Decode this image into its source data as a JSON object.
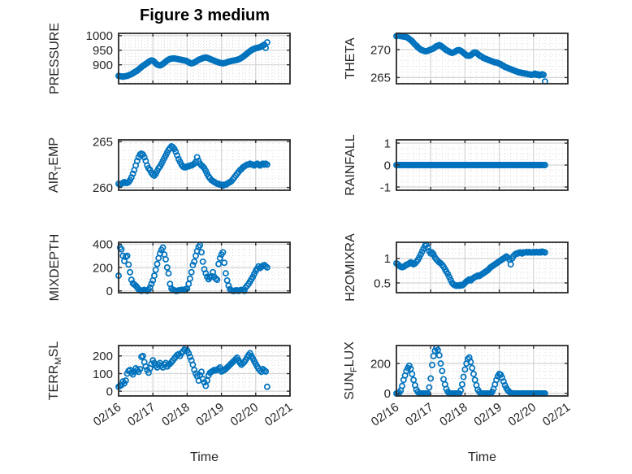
{
  "figure": {
    "title": "Figure 3 medium",
    "xlabel": "Time"
  },
  "axis": {
    "x_tick_labels": [
      "02/16",
      "02/17",
      "02/18",
      "02/19",
      "02/20",
      "02/21"
    ]
  },
  "style": {
    "marker_color": "#0072BD",
    "axis_color": "#2b2b2b",
    "grid_color": "#d4d4d4",
    "minor_grid_color": "#dcdcdc",
    "text_color": "#262626",
    "background": "#ffffff"
  },
  "chart_data": [
    {
      "type": "scatter",
      "name": "pressure",
      "row": 0,
      "col": 0,
      "ylabel_parts": [
        {
          "text": "PRESSURE",
          "sub": false
        }
      ],
      "ylim": [
        835,
        1008
      ],
      "yticks": [
        900,
        950,
        1000
      ],
      "ytick_labels": [
        "900",
        "950",
        "1000"
      ],
      "y_minor_step": 10,
      "x": {
        "start_day": 0,
        "step_day": 0.0416667,
        "unit": "days after 02/16"
      },
      "values": [
        862,
        861,
        860,
        859,
        860,
        861,
        862,
        864,
        866,
        868,
        871,
        874,
        877,
        880,
        884,
        888,
        892,
        896,
        899,
        903,
        906,
        910,
        913,
        915,
        914,
        910,
        905,
        901,
        899,
        898,
        900,
        903,
        907,
        911,
        915,
        918,
        920,
        921,
        922,
        922,
        921,
        920,
        919,
        918,
        917,
        916,
        915,
        914,
        912,
        909,
        906,
        905,
        906,
        908,
        911,
        914,
        917,
        919,
        921,
        923,
        924,
        925,
        924,
        922,
        920,
        918,
        916,
        914,
        912,
        910,
        908,
        907,
        906,
        905,
        906,
        907,
        909,
        911,
        912,
        913,
        914,
        915,
        916,
        917,
        919,
        921,
        924,
        927,
        931,
        935,
        939,
        943,
        947,
        950,
        953,
        955,
        957,
        958,
        959,
        961,
        963,
        966,
        969,
        958,
        977
      ]
    },
    {
      "type": "scatter",
      "name": "theta",
      "row": 0,
      "col": 1,
      "ylabel_parts": [
        {
          "text": "THETA",
          "sub": false
        }
      ],
      "ylim": [
        263.9,
        272.9
      ],
      "yticks": [
        265,
        270
      ],
      "ytick_labels": [
        "265",
        "270"
      ],
      "y_minor_step": 1,
      "x": {
        "start_day": 0,
        "step_day": 0.0416667,
        "unit": "days after 02/16"
      },
      "values": [
        272.4,
        272.5,
        272.5,
        272.4,
        272.4,
        272.3,
        272.3,
        272.2,
        272.1,
        271.9,
        271.7,
        271.5,
        271.2,
        270.9,
        270.7,
        270.4,
        270.2,
        270.0,
        269.9,
        269.8,
        269.7,
        269.7,
        269.8,
        269.9,
        270.0,
        270.1,
        270.2,
        270.4,
        270.6,
        270.7,
        270.8,
        270.7,
        270.5,
        270.3,
        270.1,
        269.9,
        269.8,
        269.6,
        269.5,
        269.4,
        269.5,
        269.6,
        269.8,
        269.9,
        269.9,
        269.8,
        269.6,
        269.4,
        269.2,
        269.0,
        268.9,
        268.9,
        269.0,
        269.2,
        269.4,
        269.5,
        269.4,
        269.2,
        269.0,
        268.8,
        268.7,
        268.5,
        268.4,
        268.3,
        268.2,
        268.1,
        268.0,
        267.9,
        267.8,
        267.7,
        267.7,
        267.6,
        267.5,
        267.4,
        267.2,
        267.1,
        266.9,
        266.8,
        266.7,
        266.6,
        266.5,
        266.4,
        266.3,
        266.2,
        266.1,
        266.0,
        265.9,
        265.9,
        265.8,
        265.8,
        265.7,
        265.7,
        265.6,
        265.6,
        265.5,
        265.5,
        265.6,
        265.7,
        265.5,
        265.6,
        265.4,
        265.5,
        265.6,
        265.5,
        264.3
      ]
    },
    {
      "type": "scatter",
      "name": "air-temp",
      "row": 1,
      "col": 0,
      "ylabel_parts": [
        {
          "text": "AIR",
          "sub": false
        },
        {
          "text": "T",
          "sub": true
        },
        {
          "text": "EMP",
          "sub": false
        }
      ],
      "ylim": [
        259.7,
        265.2
      ],
      "yticks": [
        260,
        265
      ],
      "ytick_labels": [
        "260",
        "265"
      ],
      "y_minor_step": 1,
      "x": {
        "start_day": 0,
        "step_day": 0.0416667,
        "unit": "days after 02/16"
      },
      "values": [
        260.4,
        260.3,
        260.4,
        260.5,
        260.6,
        260.5,
        260.5,
        260.6,
        260.8,
        261.1,
        261.5,
        261.9,
        262.4,
        262.9,
        263.3,
        263.6,
        263.7,
        263.6,
        263.3,
        262.9,
        262.4,
        262.1,
        261.9,
        261.6,
        261.4,
        261.3,
        261.5,
        261.8,
        262.1,
        262.3,
        262.6,
        262.9,
        263.2,
        263.5,
        263.8,
        264.1,
        264.3,
        264.5,
        264.4,
        264.2,
        263.9,
        263.5,
        263.1,
        262.8,
        262.5,
        262.3,
        262.2,
        262.2,
        262.3,
        262.3,
        262.4,
        262.4,
        262.5,
        262.6,
        262.8,
        263.3,
        262.9,
        262.6,
        262.4,
        262.3,
        262.1,
        261.8,
        261.5,
        261.2,
        261.0,
        260.8,
        260.7,
        260.6,
        260.5,
        260.4,
        260.4,
        260.3,
        260.3,
        260.2,
        260.3,
        260.3,
        260.4,
        260.5,
        260.6,
        260.7,
        260.9,
        261.1,
        261.3,
        261.5,
        261.7,
        261.9,
        262.0,
        262.2,
        262.3,
        262.4,
        262.5,
        262.5,
        262.6,
        262.5,
        262.5,
        262.4,
        262.5,
        262.6,
        262.5,
        262.4,
        262.5,
        262.6,
        262.5,
        262.6,
        262.5
      ]
    },
    {
      "type": "scatter",
      "name": "rainfall",
      "row": 1,
      "col": 1,
      "ylabel_parts": [
        {
          "text": "RAINFALL",
          "sub": false
        }
      ],
      "ylim": [
        -1.15,
        1.15
      ],
      "yticks": [
        -1,
        0,
        1
      ],
      "ytick_labels": [
        "-1",
        "0",
        "1"
      ],
      "y_minor_step": 0.25,
      "x": {
        "start_day": 0,
        "step_day": 0.0416667,
        "unit": "days after 02/16"
      },
      "values": [
        0,
        0,
        0,
        0,
        0,
        0,
        0,
        0,
        0,
        0,
        0,
        0,
        0,
        0,
        0,
        0,
        0,
        0,
        0,
        0,
        0,
        0,
        0,
        0,
        0,
        0,
        0,
        0,
        0,
        0,
        0,
        0,
        0,
        0,
        0,
        0,
        0,
        0,
        0,
        0,
        0,
        0,
        0,
        0,
        0,
        0,
        0,
        0,
        0,
        0,
        0,
        0,
        0,
        0,
        0,
        0,
        0,
        0,
        0,
        0,
        0,
        0,
        0,
        0,
        0,
        0,
        0,
        0,
        0,
        0,
        0,
        0,
        0,
        0,
        0,
        0,
        0,
        0,
        0,
        0,
        0,
        0,
        0,
        0,
        0,
        0,
        0,
        0,
        0,
        0,
        0,
        0,
        0,
        0,
        0,
        0,
        0,
        0,
        0,
        0,
        0,
        0,
        0,
        0,
        0
      ]
    },
    {
      "type": "scatter",
      "name": "mixdepth",
      "row": 2,
      "col": 0,
      "ylabel_parts": [
        {
          "text": "MIXDEPTH",
          "sub": false
        }
      ],
      "ylim": [
        -15,
        415
      ],
      "yticks": [
        0,
        200,
        400
      ],
      "ytick_labels": [
        "0",
        "200",
        "400"
      ],
      "y_minor_step": 50,
      "x": {
        "start_day": 0,
        "step_day": 0.0416667,
        "unit": "days after 02/16"
      },
      "values": [
        130,
        370,
        355,
        300,
        255,
        290,
        300,
        225,
        160,
        95,
        65,
        55,
        45,
        30,
        15,
        5,
        0,
        5,
        10,
        5,
        0,
        10,
        30,
        60,
        90,
        130,
        180,
        230,
        280,
        320,
        350,
        370,
        310,
        270,
        200,
        150,
        60,
        20,
        10,
        5,
        0,
        0,
        5,
        5,
        10,
        10,
        5,
        15,
        20,
        60,
        105,
        160,
        220,
        250,
        300,
        340,
        375,
        390,
        330,
        250,
        185,
        150,
        120,
        100,
        115,
        125,
        160,
        120,
        105,
        95,
        230,
        280,
        310,
        330,
        240,
        150,
        90,
        45,
        15,
        5,
        0,
        0,
        5,
        5,
        0,
        5,
        10,
        5,
        0,
        30,
        45,
        60,
        80,
        100,
        120,
        145,
        170,
        190,
        210,
        195,
        205,
        215,
        220,
        210,
        200
      ]
    },
    {
      "type": "scatter",
      "name": "h2omixra",
      "row": 2,
      "col": 1,
      "ylabel_parts": [
        {
          "text": "H2OMIXRA",
          "sub": false
        }
      ],
      "ylim": [
        0.3,
        1.33
      ],
      "yticks": [
        0.5,
        1
      ],
      "ytick_labels": [
        "0.5",
        "1"
      ],
      "y_minor_step": 0.1,
      "x": {
        "start_day": 0,
        "step_day": 0.0416667,
        "unit": "days after 02/16"
      },
      "values": [
        0.9,
        0.88,
        0.85,
        0.83,
        0.82,
        0.83,
        0.85,
        0.87,
        0.88,
        0.9,
        0.92,
        0.9,
        0.88,
        0.9,
        0.93,
        0.97,
        1.02,
        1.08,
        1.14,
        1.2,
        1.26,
        1.28,
        1.22,
        1.15,
        1.1,
        1.12,
        1.08,
        1.02,
        0.98,
        0.95,
        0.92,
        0.9,
        0.87,
        0.83,
        0.78,
        0.73,
        0.68,
        0.62,
        0.56,
        0.5,
        0.47,
        0.45,
        0.44,
        0.45,
        0.44,
        0.46,
        0.45,
        0.47,
        0.5,
        0.53,
        0.55,
        0.57,
        0.55,
        0.58,
        0.6,
        0.62,
        0.63,
        0.65,
        0.64,
        0.66,
        0.68,
        0.7,
        0.72,
        0.74,
        0.76,
        0.79,
        0.82,
        0.84,
        0.86,
        0.88,
        0.9,
        0.92,
        0.94,
        0.96,
        0.98,
        1.0,
        1.02,
        1.04,
        1.02,
        0.98,
        0.88,
        1.0,
        1.05,
        1.08,
        1.1,
        1.1,
        1.12,
        1.12,
        1.1,
        1.12,
        1.12,
        1.13,
        1.12,
        1.13,
        1.12,
        1.12,
        1.13,
        1.12,
        1.13,
        1.12,
        1.13,
        1.12,
        1.14,
        1.13,
        1.12
      ]
    },
    {
      "type": "scatter",
      "name": "terr-msl",
      "row": 3,
      "col": 0,
      "ylabel_parts": [
        {
          "text": "TERR",
          "sub": false
        },
        {
          "text": "M",
          "sub": true
        },
        {
          "text": "SL",
          "sub": false
        }
      ],
      "ylim": [
        -27,
        259
      ],
      "yticks": [
        0,
        100,
        200
      ],
      "ytick_labels": [
        "0",
        "100",
        "200"
      ],
      "y_minor_step": 25,
      "x": {
        "start_day": 0,
        "step_day": 0.0416667,
        "unit": "days after 02/16"
      },
      "values": [
        25,
        30,
        35,
        55,
        45,
        60,
        100,
        115,
        120,
        105,
        95,
        110,
        130,
        120,
        110,
        125,
        195,
        200,
        165,
        140,
        120,
        105,
        130,
        155,
        175,
        160,
        145,
        135,
        150,
        160,
        145,
        135,
        150,
        160,
        140,
        150,
        155,
        165,
        175,
        185,
        195,
        205,
        210,
        200,
        215,
        225,
        235,
        245,
        230,
        215,
        195,
        175,
        150,
        120,
        100,
        85,
        60,
        90,
        110,
        70,
        50,
        30,
        60,
        90,
        105,
        110,
        115,
        120,
        118,
        122,
        128,
        135,
        112,
        116,
        120,
        126,
        134,
        142,
        150,
        158,
        166,
        174,
        182,
        190,
        175,
        160,
        150,
        158,
        166,
        178,
        192,
        205,
        215,
        200,
        185,
        170,
        155,
        140,
        128,
        118,
        110,
        125,
        118,
        112,
        25
      ]
    },
    {
      "type": "scatter",
      "name": "sun-flux",
      "row": 3,
      "col": 1,
      "ylabel_parts": [
        {
          "text": "SUN",
          "sub": false
        },
        {
          "text": "F",
          "sub": true
        },
        {
          "text": "LUX",
          "sub": false
        }
      ],
      "ylim": [
        -17,
        320
      ],
      "yticks": [
        0,
        200
      ],
      "ytick_labels": [
        "0",
        "200"
      ],
      "y_minor_step": 50,
      "x": {
        "start_day": 0,
        "step_day": 0.0416667,
        "unit": "days after 02/16"
      },
      "values": [
        0,
        0,
        5,
        20,
        50,
        90,
        120,
        150,
        170,
        185,
        165,
        130,
        90,
        55,
        25,
        10,
        0,
        0,
        0,
        0,
        0,
        0,
        0,
        40,
        100,
        190,
        250,
        285,
        305,
        290,
        255,
        200,
        150,
        95,
        60,
        30,
        10,
        0,
        0,
        0,
        0,
        0,
        0,
        0,
        0,
        20,
        60,
        110,
        160,
        200,
        230,
        240,
        210,
        170,
        130,
        90,
        55,
        25,
        10,
        0,
        0,
        0,
        0,
        0,
        0,
        0,
        0,
        10,
        30,
        60,
        90,
        115,
        130,
        125,
        105,
        80,
        55,
        35,
        20,
        10,
        5,
        0,
        0,
        0,
        0,
        0,
        0,
        0,
        0,
        0,
        0,
        0,
        0,
        0,
        0,
        0,
        0,
        0,
        0,
        0,
        0,
        0,
        0,
        0,
        0
      ]
    }
  ]
}
